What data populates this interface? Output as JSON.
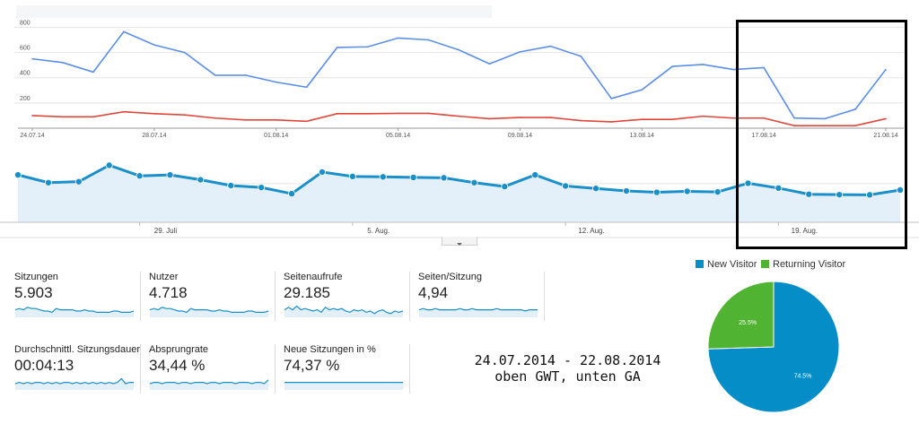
{
  "chart_data": [
    {
      "type": "line",
      "x": [
        "24.07.14",
        "25.07.14",
        "26.07.14",
        "27.07.14",
        "28.07.14",
        "29.07.14",
        "30.07.14",
        "31.07.14",
        "01.08.14",
        "02.08.14",
        "03.08.14",
        "04.08.14",
        "05.08.14",
        "06.08.14",
        "07.08.14",
        "08.08.14",
        "09.08.14",
        "10.08.14",
        "11.08.14",
        "12.08.14",
        "13.08.14",
        "14.08.14",
        "15.08.14",
        "16.08.14",
        "17.08.14",
        "18.08.14",
        "19.08.14",
        "20.08.14",
        "21.08.14"
      ],
      "series": [
        {
          "color": "#5b8ee6",
          "values": [
            550,
            520,
            445,
            765,
            660,
            600,
            420,
            420,
            365,
            325,
            640,
            645,
            715,
            700,
            620,
            510,
            605,
            650,
            570,
            235,
            305,
            490,
            505,
            465,
            480,
            80,
            75,
            150,
            465
          ]
        },
        {
          "color": "#e0473a",
          "values": [
            100,
            90,
            90,
            130,
            115,
            105,
            80,
            65,
            65,
            55,
            115,
            115,
            118,
            118,
            95,
            75,
            85,
            85,
            60,
            50,
            70,
            70,
            95,
            80,
            80,
            20,
            20,
            20,
            75
          ]
        }
      ],
      "x_ticks": [
        "24.07.14",
        "28.07.14",
        "01.08.14",
        "05.08.14",
        "09.08.14",
        "13.08.14",
        "17.08.14",
        "21.08.14"
      ],
      "y_ticks": [
        200,
        400,
        600,
        800
      ],
      "ylim": [
        0,
        860
      ],
      "grid": true
    },
    {
      "type": "area",
      "x": [
        "24.07",
        "25.07",
        "26.07",
        "27.07",
        "28.07",
        "29.07",
        "30.07",
        "31.07",
        "01.08",
        "02.08",
        "03.08",
        "04.08",
        "05.08",
        "06.08",
        "07.08",
        "08.08",
        "09.08",
        "10.08",
        "11.08",
        "12.08",
        "13.08",
        "14.08",
        "15.08",
        "16.08",
        "17.08",
        "18.08",
        "19.08",
        "20.08",
        "21.08",
        "22.08"
      ],
      "series": [
        {
          "color": "#1a8fc9",
          "values": [
            245,
            205,
            210,
            295,
            240,
            245,
            220,
            190,
            180,
            148,
            260,
            237,
            235,
            232,
            230,
            205,
            185,
            245,
            188,
            175,
            162,
            155,
            160,
            157,
            202,
            177,
            145,
            143,
            142,
            167
          ]
        }
      ],
      "x_ticks": [
        "29. Juli",
        "5. Aug.",
        "12. Aug.",
        "19. Aug."
      ],
      "y_ticks": [
        200
      ],
      "ylim": [
        0,
        380
      ]
    },
    {
      "type": "pie",
      "labels": [
        "New Visitor",
        "Returning Visitor"
      ],
      "values": [
        74.5,
        25.5
      ],
      "value_labels": [
        "74.5%",
        "25.5%"
      ],
      "colors": [
        "#058dc7",
        "#50b432"
      ],
      "legend": "top"
    }
  ],
  "metrics": [
    {
      "label": "Sitzungen",
      "value": "5.903",
      "spark": [
        6,
        7,
        6,
        8,
        7,
        7,
        6,
        5,
        5,
        4,
        7,
        6,
        6,
        6,
        6,
        5,
        5,
        6,
        5,
        5,
        4,
        4,
        4,
        4,
        5,
        5,
        4,
        4,
        4,
        5
      ]
    },
    {
      "label": "Nutzer",
      "value": "4.718",
      "spark": [
        6,
        7,
        6,
        8,
        7,
        7,
        6,
        5,
        5,
        4,
        7,
        6,
        6,
        6,
        6,
        5,
        5,
        6,
        5,
        5,
        4,
        4,
        4,
        4,
        5,
        5,
        4,
        4,
        4,
        5
      ]
    },
    {
      "label": "Seitenaufrufe",
      "value": "29.185",
      "spark": [
        6,
        8,
        6,
        9,
        6,
        7,
        6,
        5,
        6,
        4,
        8,
        6,
        7,
        6,
        7,
        5,
        4,
        6,
        5,
        6,
        4,
        5,
        3,
        5,
        6,
        4,
        3,
        5,
        4,
        5
      ]
    },
    {
      "label": "Seiten/Sitzung",
      "value": "4,94",
      "spark": [
        6,
        7,
        6,
        6,
        7,
        6,
        6,
        6,
        6,
        6,
        7,
        6,
        6,
        7,
        6,
        6,
        6,
        6,
        6,
        7,
        6,
        6,
        6,
        6,
        6,
        6,
        5,
        6,
        6,
        6
      ]
    },
    {
      "label": "Durchschnittl. Sitzungsdauer",
      "value": "00:04:13",
      "spark": [
        5,
        6,
        5,
        6,
        5,
        6,
        6,
        5,
        6,
        5,
        6,
        5,
        6,
        6,
        5,
        6,
        5,
        6,
        5,
        6,
        5,
        6,
        5,
        6,
        5,
        6,
        9,
        5,
        6,
        6
      ]
    },
    {
      "label": "Absprungrate",
      "value": "34,44 %",
      "spark": [
        5,
        6,
        6,
        5,
        6,
        6,
        6,
        5,
        6,
        6,
        5,
        6,
        6,
        6,
        5,
        6,
        6,
        5,
        6,
        6,
        6,
        5,
        6,
        6,
        6,
        5,
        6,
        6,
        5,
        8
      ]
    },
    {
      "label": "Neue Sitzungen in %",
      "value": "74,37 %",
      "spark": [
        6,
        6,
        6,
        6,
        6,
        6,
        6,
        6,
        6,
        6,
        6,
        6,
        6,
        6,
        6,
        6,
        6,
        6,
        6,
        6,
        6,
        6,
        6,
        6,
        6,
        6,
        6,
        6,
        6,
        6
      ]
    }
  ],
  "caption": {
    "line1": "24.07.2014 - 22.08.2014",
    "line2": "oben GWT, unten GA"
  },
  "colors": {
    "metric_line": "#1a8fc9",
    "metric_fill": "#e3f0f9",
    "highlight_box": "#000000"
  }
}
